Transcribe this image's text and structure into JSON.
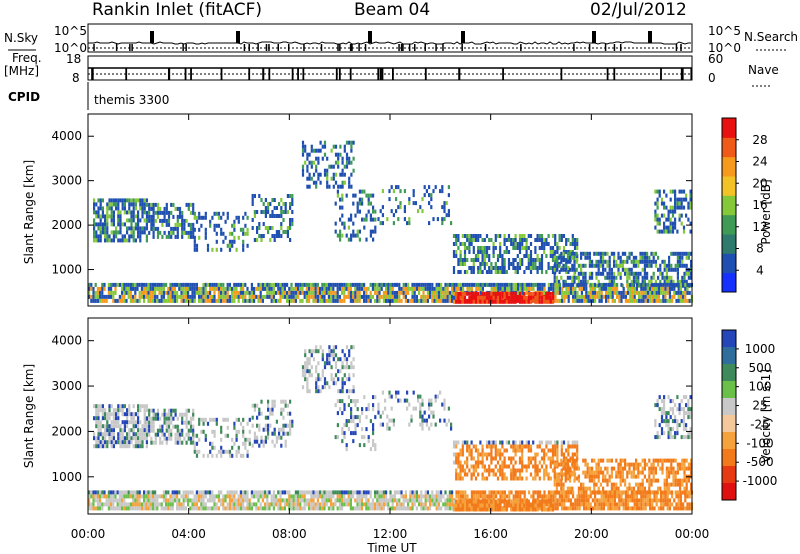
{
  "header": {
    "station": "Rankin Inlet (fitACF)",
    "beam": "Beam 04",
    "date": "02/Jul/2012"
  },
  "left_labels": {
    "nsky": "N.Sky",
    "freq_line1": "Freq.",
    "freq_line2": "[MHz]",
    "cpid": "CPID"
  },
  "right_labels": {
    "nsearch": "N.Search",
    "nave": "Nave"
  },
  "nsky_axis": {
    "top": "10^5",
    "bottom": "10^0"
  },
  "nsearch_axis": {
    "top": "10^5",
    "bottom": "10^0"
  },
  "freq_axis": {
    "top": "18",
    "bottom": "8"
  },
  "nave_axis": {
    "top": "60",
    "bottom": "0"
  },
  "cpid_text": "themis 3300",
  "chart_data": [
    {
      "type": "heatmap",
      "name": "power",
      "ylabel": "Slant Range [km]",
      "ylim": [
        180,
        4500
      ],
      "yticks": [
        "1000",
        "2000",
        "3000",
        "4000"
      ],
      "xlim_hours": [
        0,
        24
      ],
      "colorbar": {
        "label": "Power [dB]",
        "range": [
          0,
          30
        ],
        "ticks": [
          "4",
          "8",
          "12",
          "16",
          "20",
          "24",
          "28"
        ],
        "colors": [
          "#1530ff",
          "#1f4fb0",
          "#2e7a6c",
          "#3f9a55",
          "#85c83a",
          "#f2c227",
          "#f59a1d",
          "#f05a18",
          "#e81010"
        ]
      }
    },
    {
      "type": "heatmap",
      "name": "velocity",
      "ylabel": "Slant Range [km]",
      "ylim": [
        180,
        4500
      ],
      "yticks": [
        "1000",
        "2000",
        "3000",
        "4000"
      ],
      "xlim_hours": [
        0,
        24
      ],
      "colorbar": {
        "label": "Velocity [m s-1]",
        "ticks": [
          "1000",
          "500",
          "100",
          "25",
          "-25",
          "-100",
          "-500",
          "-1000"
        ],
        "colors": [
          "#2446b8",
          "#2e6d9c",
          "#3f8a5a",
          "#6bc04a",
          "#c8c8c8",
          "#f3c89a",
          "#f5a23c",
          "#f27a1a",
          "#e83a12",
          "#e01010"
        ]
      }
    }
  ],
  "time_axis": {
    "label": "Time UT",
    "ticks": [
      "00:00",
      "04:00",
      "08:00",
      "12:00",
      "16:00",
      "20:00",
      "00:00"
    ]
  }
}
